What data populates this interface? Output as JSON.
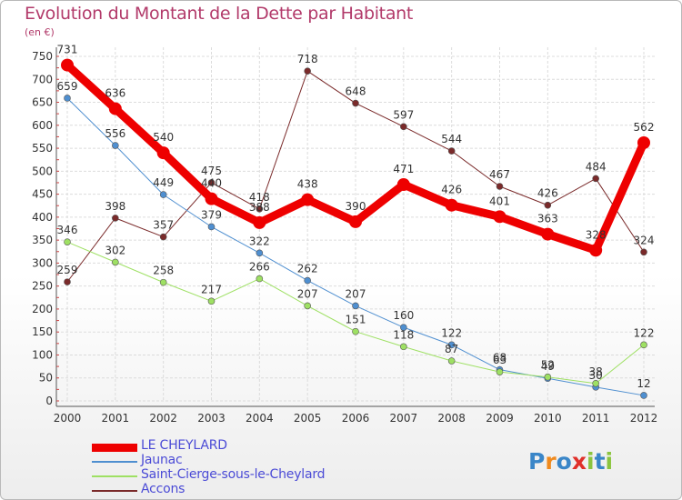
{
  "title": "Evolution du Montant de la Dette par Habitant",
  "subtitle": "(en €)",
  "logo": {
    "text": "Proxiti",
    "colors": [
      "#3a86c8",
      "#f08a1e",
      "#3a86c8",
      "#e0302a",
      "#8bc43f",
      "#3a86c8",
      "#8bc43f"
    ]
  },
  "chart_data": {
    "type": "line",
    "x": [
      "2000",
      "2001",
      "2002",
      "2003",
      "2004",
      "2005",
      "2006",
      "2007",
      "2008",
      "2009",
      "2010",
      "2011",
      "2012"
    ],
    "ylim": [
      0,
      750
    ],
    "yticks": [
      0,
      50,
      100,
      150,
      200,
      250,
      300,
      350,
      400,
      450,
      500,
      550,
      600,
      650,
      700,
      750
    ],
    "grid": true,
    "legend_position": "bottom-left",
    "series": [
      {
        "name": "LE CHEYLARD",
        "color": "#ee0000",
        "values": [
          731,
          636,
          540,
          440,
          388,
          438,
          390,
          471,
          426,
          401,
          363,
          328,
          562
        ]
      },
      {
        "name": "Jaunac",
        "color": "#4f8fd0",
        "values": [
          659,
          556,
          449,
          379,
          322,
          262,
          207,
          160,
          122,
          68,
          49,
          30,
          12
        ]
      },
      {
        "name": "Saint-Cierge-sous-le-Cheylard",
        "color": "#9ee063",
        "values": [
          346,
          302,
          258,
          217,
          266,
          207,
          151,
          118,
          87,
          63,
          52,
          38,
          122
        ]
      },
      {
        "name": "Accons",
        "color": "#7a2a2a",
        "values": [
          259,
          398,
          357,
          475,
          418,
          718,
          648,
          597,
          544,
          467,
          426,
          484,
          324
        ]
      }
    ]
  }
}
